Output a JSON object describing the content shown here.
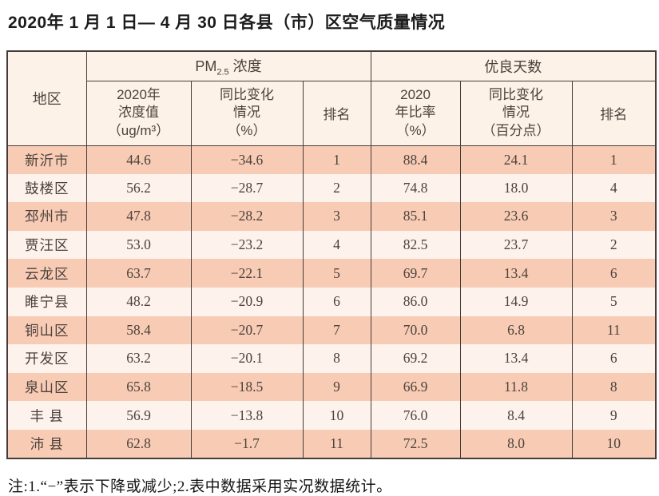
{
  "title": "2020年 1 月 1 日— 4 月 30 日各县（市）区空气质量情况",
  "footnote": "注:1.“−”表示下降或减少;2.表中数据采用实况数据统计。",
  "colors": {
    "row_odd": "#f8cbb5",
    "row_even": "#fdf2ec",
    "header_bg": "#fdf2e8",
    "border": "#453d38"
  },
  "table": {
    "headers": {
      "region": "地区",
      "pm_group": {
        "prefix": "PM",
        "sub": "2.5",
        "suffix": " 浓度"
      },
      "good_days_group": "优良天数",
      "concentration": "2020年\n浓度值\n（ug/m³）",
      "pm_change": "同比变化\n情况\n（%）",
      "pm_rank": "排名",
      "ratio": "2020\n年比率\n（%）",
      "days_change": "同比变化\n情况\n（百分点）",
      "days_rank": "排名"
    },
    "rows": [
      [
        "新沂市",
        "44.6",
        "−34.6",
        "1",
        "88.4",
        "24.1",
        "1"
      ],
      [
        "鼓楼区",
        "56.2",
        "−28.7",
        "2",
        "74.8",
        "18.0",
        "4"
      ],
      [
        "邳州市",
        "47.8",
        "−28.2",
        "3",
        "85.1",
        "23.6",
        "3"
      ],
      [
        "贾汪区",
        "53.0",
        "−23.2",
        "4",
        "82.5",
        "23.7",
        "2"
      ],
      [
        "云龙区",
        "63.7",
        "−22.1",
        "5",
        "69.7",
        "13.4",
        "6"
      ],
      [
        "睢宁县",
        "48.2",
        "−20.9",
        "6",
        "86.0",
        "14.9",
        "5"
      ],
      [
        "铜山区",
        "58.4",
        "−20.7",
        "7",
        "70.0",
        "6.8",
        "11"
      ],
      [
        "开发区",
        "63.2",
        "−20.1",
        "8",
        "69.2",
        "13.4",
        "6"
      ],
      [
        "泉山区",
        "65.8",
        "−18.5",
        "9",
        "66.9",
        "11.8",
        "8"
      ],
      [
        "丰 县",
        "56.9",
        "−13.8",
        "10",
        "76.0",
        "8.4",
        "9"
      ],
      [
        "沛 县",
        "62.8",
        "−1.7",
        "11",
        "72.5",
        "8.0",
        "10"
      ]
    ]
  }
}
